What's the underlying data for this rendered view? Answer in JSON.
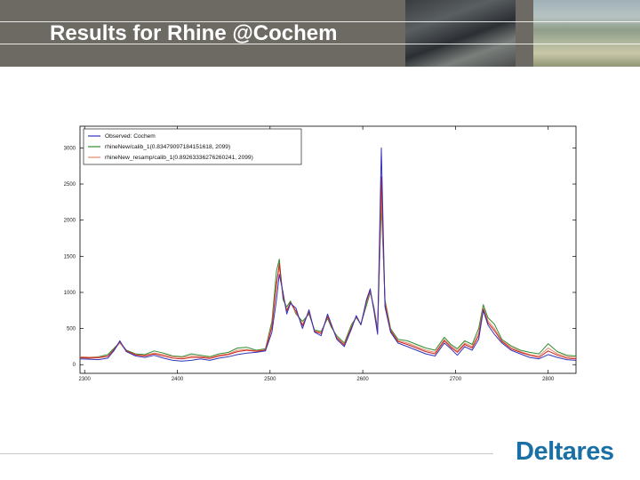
{
  "header": {
    "title": "Results for Rhine @Cochem"
  },
  "logo": {
    "text": "Deltares",
    "color": "#1a6fa5"
  },
  "chart_data": {
    "type": "line",
    "xlim": [
      2295,
      2830
    ],
    "ylim": [
      -120,
      3300
    ],
    "yticks": [
      0,
      500,
      1000,
      1500,
      2000,
      2500,
      3000
    ],
    "xticks": [
      2300,
      2400,
      2500,
      2600,
      2700,
      2800
    ],
    "legend_position": "upper-left",
    "grid": false,
    "series": [
      {
        "name": "Observed: Cochem",
        "color": "#3333bb",
        "points": [
          [
            2295,
            80
          ],
          [
            2305,
            75
          ],
          [
            2315,
            70
          ],
          [
            2325,
            90
          ],
          [
            2332,
            200
          ],
          [
            2338,
            330
          ],
          [
            2345,
            180
          ],
          [
            2355,
            120
          ],
          [
            2365,
            100
          ],
          [
            2375,
            130
          ],
          [
            2385,
            90
          ],
          [
            2395,
            60
          ],
          [
            2405,
            50
          ],
          [
            2415,
            60
          ],
          [
            2425,
            80
          ],
          [
            2435,
            60
          ],
          [
            2445,
            90
          ],
          [
            2455,
            110
          ],
          [
            2465,
            140
          ],
          [
            2475,
            160
          ],
          [
            2485,
            170
          ],
          [
            2495,
            190
          ],
          [
            2502,
            450
          ],
          [
            2507,
            900
          ],
          [
            2510,
            1250
          ],
          [
            2514,
            1000
          ],
          [
            2518,
            700
          ],
          [
            2522,
            850
          ],
          [
            2528,
            780
          ],
          [
            2535,
            500
          ],
          [
            2542,
            760
          ],
          [
            2548,
            450
          ],
          [
            2555,
            400
          ],
          [
            2562,
            700
          ],
          [
            2566,
            560
          ],
          [
            2572,
            350
          ],
          [
            2580,
            250
          ],
          [
            2588,
            500
          ],
          [
            2593,
            680
          ],
          [
            2598,
            550
          ],
          [
            2604,
            900
          ],
          [
            2608,
            1050
          ],
          [
            2612,
            750
          ],
          [
            2616,
            420
          ],
          [
            2620,
            3000
          ],
          [
            2624,
            800
          ],
          [
            2630,
            450
          ],
          [
            2638,
            300
          ],
          [
            2648,
            250
          ],
          [
            2658,
            200
          ],
          [
            2668,
            150
          ],
          [
            2678,
            120
          ],
          [
            2688,
            300
          ],
          [
            2695,
            220
          ],
          [
            2702,
            130
          ],
          [
            2710,
            250
          ],
          [
            2718,
            200
          ],
          [
            2725,
            350
          ],
          [
            2730,
            750
          ],
          [
            2735,
            550
          ],
          [
            2742,
            420
          ],
          [
            2750,
            300
          ],
          [
            2760,
            200
          ],
          [
            2770,
            150
          ],
          [
            2780,
            100
          ],
          [
            2790,
            80
          ],
          [
            2800,
            140
          ],
          [
            2810,
            100
          ],
          [
            2820,
            70
          ],
          [
            2830,
            60
          ]
        ]
      },
      {
        "name": "rhineNew/calib_1(0.834790971841516​18, 2099)",
        "color": "#2e8b2e",
        "points": [
          [
            2295,
            100
          ],
          [
            2305,
            100
          ],
          [
            2315,
            110
          ],
          [
            2325,
            140
          ],
          [
            2332,
            230
          ],
          [
            2338,
            310
          ],
          [
            2345,
            200
          ],
          [
            2355,
            150
          ],
          [
            2365,
            140
          ],
          [
            2375,
            190
          ],
          [
            2385,
            160
          ],
          [
            2395,
            120
          ],
          [
            2405,
            110
          ],
          [
            2415,
            150
          ],
          [
            2425,
            130
          ],
          [
            2435,
            110
          ],
          [
            2445,
            150
          ],
          [
            2455,
            170
          ],
          [
            2465,
            230
          ],
          [
            2475,
            240
          ],
          [
            2485,
            200
          ],
          [
            2495,
            220
          ],
          [
            2502,
            600
          ],
          [
            2507,
            1300
          ],
          [
            2510,
            1460
          ],
          [
            2514,
            900
          ],
          [
            2518,
            800
          ],
          [
            2522,
            880
          ],
          [
            2528,
            700
          ],
          [
            2535,
            600
          ],
          [
            2542,
            700
          ],
          [
            2548,
            480
          ],
          [
            2555,
            460
          ],
          [
            2562,
            640
          ],
          [
            2566,
            520
          ],
          [
            2572,
            400
          ],
          [
            2580,
            300
          ],
          [
            2588,
            560
          ],
          [
            2593,
            650
          ],
          [
            2598,
            560
          ],
          [
            2604,
            820
          ],
          [
            2608,
            1000
          ],
          [
            2612,
            800
          ],
          [
            2616,
            500
          ],
          [
            2620,
            2200
          ],
          [
            2624,
            900
          ],
          [
            2630,
            500
          ],
          [
            2638,
            350
          ],
          [
            2648,
            330
          ],
          [
            2658,
            280
          ],
          [
            2668,
            230
          ],
          [
            2678,
            200
          ],
          [
            2688,
            380
          ],
          [
            2695,
            280
          ],
          [
            2702,
            220
          ],
          [
            2710,
            330
          ],
          [
            2718,
            280
          ],
          [
            2725,
            500
          ],
          [
            2730,
            830
          ],
          [
            2735,
            650
          ],
          [
            2742,
            560
          ],
          [
            2750,
            350
          ],
          [
            2760,
            260
          ],
          [
            2770,
            200
          ],
          [
            2780,
            170
          ],
          [
            2790,
            150
          ],
          [
            2800,
            290
          ],
          [
            2810,
            180
          ],
          [
            2820,
            130
          ],
          [
            2830,
            120
          ]
        ]
      },
      {
        "name": "rhineNew_resamp/calib_1(0.8926333627626024​1, 2099)",
        "color": "#e08a6a",
        "points": [
          [
            2295,
            110
          ],
          [
            2305,
            105
          ],
          [
            2315,
            105
          ],
          [
            2325,
            120
          ],
          [
            2332,
            210
          ],
          [
            2338,
            300
          ],
          [
            2345,
            190
          ],
          [
            2355,
            140
          ],
          [
            2365,
            130
          ],
          [
            2375,
            160
          ],
          [
            2385,
            140
          ],
          [
            2395,
            110
          ],
          [
            2405,
            100
          ],
          [
            2415,
            120
          ],
          [
            2425,
            110
          ],
          [
            2435,
            100
          ],
          [
            2445,
            130
          ],
          [
            2455,
            150
          ],
          [
            2465,
            200
          ],
          [
            2475,
            210
          ],
          [
            2485,
            190
          ],
          [
            2495,
            210
          ],
          [
            2502,
            550
          ],
          [
            2507,
            1150
          ],
          [
            2510,
            1350
          ],
          [
            2514,
            950
          ],
          [
            2518,
            760
          ],
          [
            2522,
            860
          ],
          [
            2528,
            720
          ],
          [
            2535,
            560
          ],
          [
            2542,
            720
          ],
          [
            2548,
            470
          ],
          [
            2555,
            440
          ],
          [
            2562,
            660
          ],
          [
            2566,
            540
          ],
          [
            2572,
            380
          ],
          [
            2580,
            280
          ],
          [
            2588,
            530
          ],
          [
            2593,
            660
          ],
          [
            2598,
            560
          ],
          [
            2604,
            860
          ],
          [
            2608,
            1020
          ],
          [
            2612,
            780
          ],
          [
            2616,
            470
          ],
          [
            2620,
            2350
          ],
          [
            2624,
            870
          ],
          [
            2630,
            480
          ],
          [
            2638,
            330
          ],
          [
            2648,
            300
          ],
          [
            2658,
            250
          ],
          [
            2668,
            200
          ],
          [
            2678,
            170
          ],
          [
            2688,
            350
          ],
          [
            2695,
            260
          ],
          [
            2702,
            190
          ],
          [
            2710,
            300
          ],
          [
            2718,
            250
          ],
          [
            2725,
            440
          ],
          [
            2730,
            790
          ],
          [
            2735,
            610
          ],
          [
            2742,
            500
          ],
          [
            2750,
            330
          ],
          [
            2760,
            240
          ],
          [
            2770,
            180
          ],
          [
            2780,
            140
          ],
          [
            2790,
            120
          ],
          [
            2800,
            230
          ],
          [
            2810,
            150
          ],
          [
            2820,
            110
          ],
          [
            2830,
            100
          ]
        ]
      },
      {
        "name": "",
        "color": "#cc2222",
        "points": [
          [
            2295,
            95
          ],
          [
            2305,
            90
          ],
          [
            2315,
            95
          ],
          [
            2325,
            115
          ],
          [
            2332,
            215
          ],
          [
            2338,
            320
          ],
          [
            2345,
            195
          ],
          [
            2355,
            135
          ],
          [
            2365,
            120
          ],
          [
            2375,
            150
          ],
          [
            2385,
            120
          ],
          [
            2395,
            90
          ],
          [
            2405,
            80
          ],
          [
            2415,
            100
          ],
          [
            2425,
            100
          ],
          [
            2435,
            85
          ],
          [
            2445,
            120
          ],
          [
            2455,
            140
          ],
          [
            2465,
            180
          ],
          [
            2475,
            200
          ],
          [
            2485,
            185
          ],
          [
            2495,
            200
          ],
          [
            2502,
            520
          ],
          [
            2507,
            1100
          ],
          [
            2510,
            1400
          ],
          [
            2514,
            950
          ],
          [
            2518,
            740
          ],
          [
            2522,
            860
          ],
          [
            2528,
            740
          ],
          [
            2535,
            540
          ],
          [
            2542,
            730
          ],
          [
            2548,
            460
          ],
          [
            2555,
            430
          ],
          [
            2562,
            670
          ],
          [
            2566,
            540
          ],
          [
            2572,
            370
          ],
          [
            2580,
            270
          ],
          [
            2588,
            520
          ],
          [
            2593,
            670
          ],
          [
            2598,
            555
          ],
          [
            2604,
            880
          ],
          [
            2608,
            1030
          ],
          [
            2612,
            770
          ],
          [
            2616,
            450
          ],
          [
            2620,
            2600
          ],
          [
            2624,
            850
          ],
          [
            2630,
            470
          ],
          [
            2638,
            320
          ],
          [
            2648,
            280
          ],
          [
            2658,
            230
          ],
          [
            2668,
            180
          ],
          [
            2678,
            150
          ],
          [
            2688,
            330
          ],
          [
            2695,
            240
          ],
          [
            2702,
            170
          ],
          [
            2710,
            280
          ],
          [
            2718,
            230
          ],
          [
            2725,
            400
          ],
          [
            2730,
            770
          ],
          [
            2735,
            580
          ],
          [
            2742,
            470
          ],
          [
            2750,
            320
          ],
          [
            2760,
            220
          ],
          [
            2770,
            170
          ],
          [
            2780,
            130
          ],
          [
            2790,
            100
          ],
          [
            2800,
            190
          ],
          [
            2810,
            130
          ],
          [
            2820,
            90
          ],
          [
            2830,
            80
          ]
        ]
      }
    ]
  }
}
